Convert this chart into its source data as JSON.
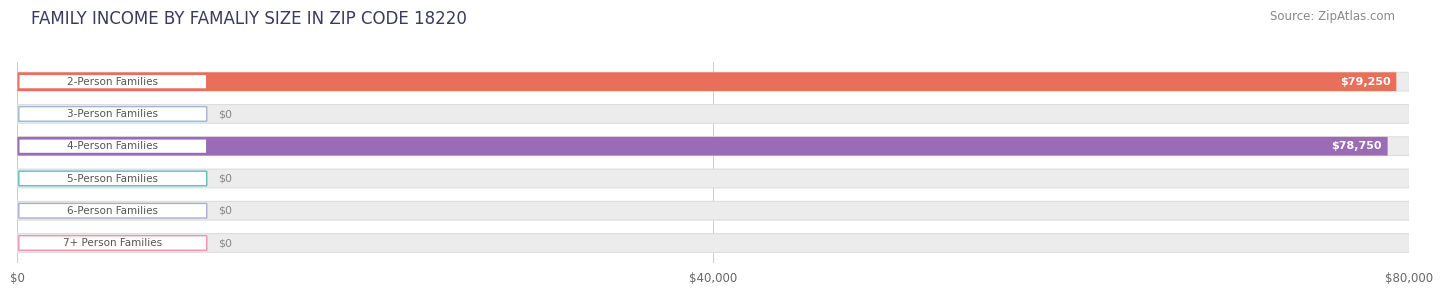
{
  "title": "FAMILY INCOME BY FAMALIY SIZE IN ZIP CODE 18220",
  "source": "Source: ZipAtlas.com",
  "categories": [
    "2-Person Families",
    "3-Person Families",
    "4-Person Families",
    "5-Person Families",
    "6-Person Families",
    "7+ Person Families"
  ],
  "values": [
    79250,
    0,
    78750,
    0,
    0,
    0
  ],
  "bar_colors": [
    "#E8705A",
    "#9BB8D4",
    "#9B6BB5",
    "#5BBFBF",
    "#A8ADD8",
    "#F28FAD"
  ],
  "value_labels": [
    "$79,250",
    "$0",
    "$78,750",
    "$0",
    "$0",
    "$0"
  ],
  "xlim_max": 80000,
  "xtick_values": [
    0,
    40000,
    80000
  ],
  "xticklabels": [
    "$0",
    "$40,000",
    "$80,000"
  ],
  "bg_color": "#ffffff",
  "track_color": "#ececec",
  "track_edge_color": "#dddddd",
  "title_fontsize": 12,
  "source_fontsize": 8.5,
  "label_fontsize": 7.5,
  "value_fontsize": 8
}
